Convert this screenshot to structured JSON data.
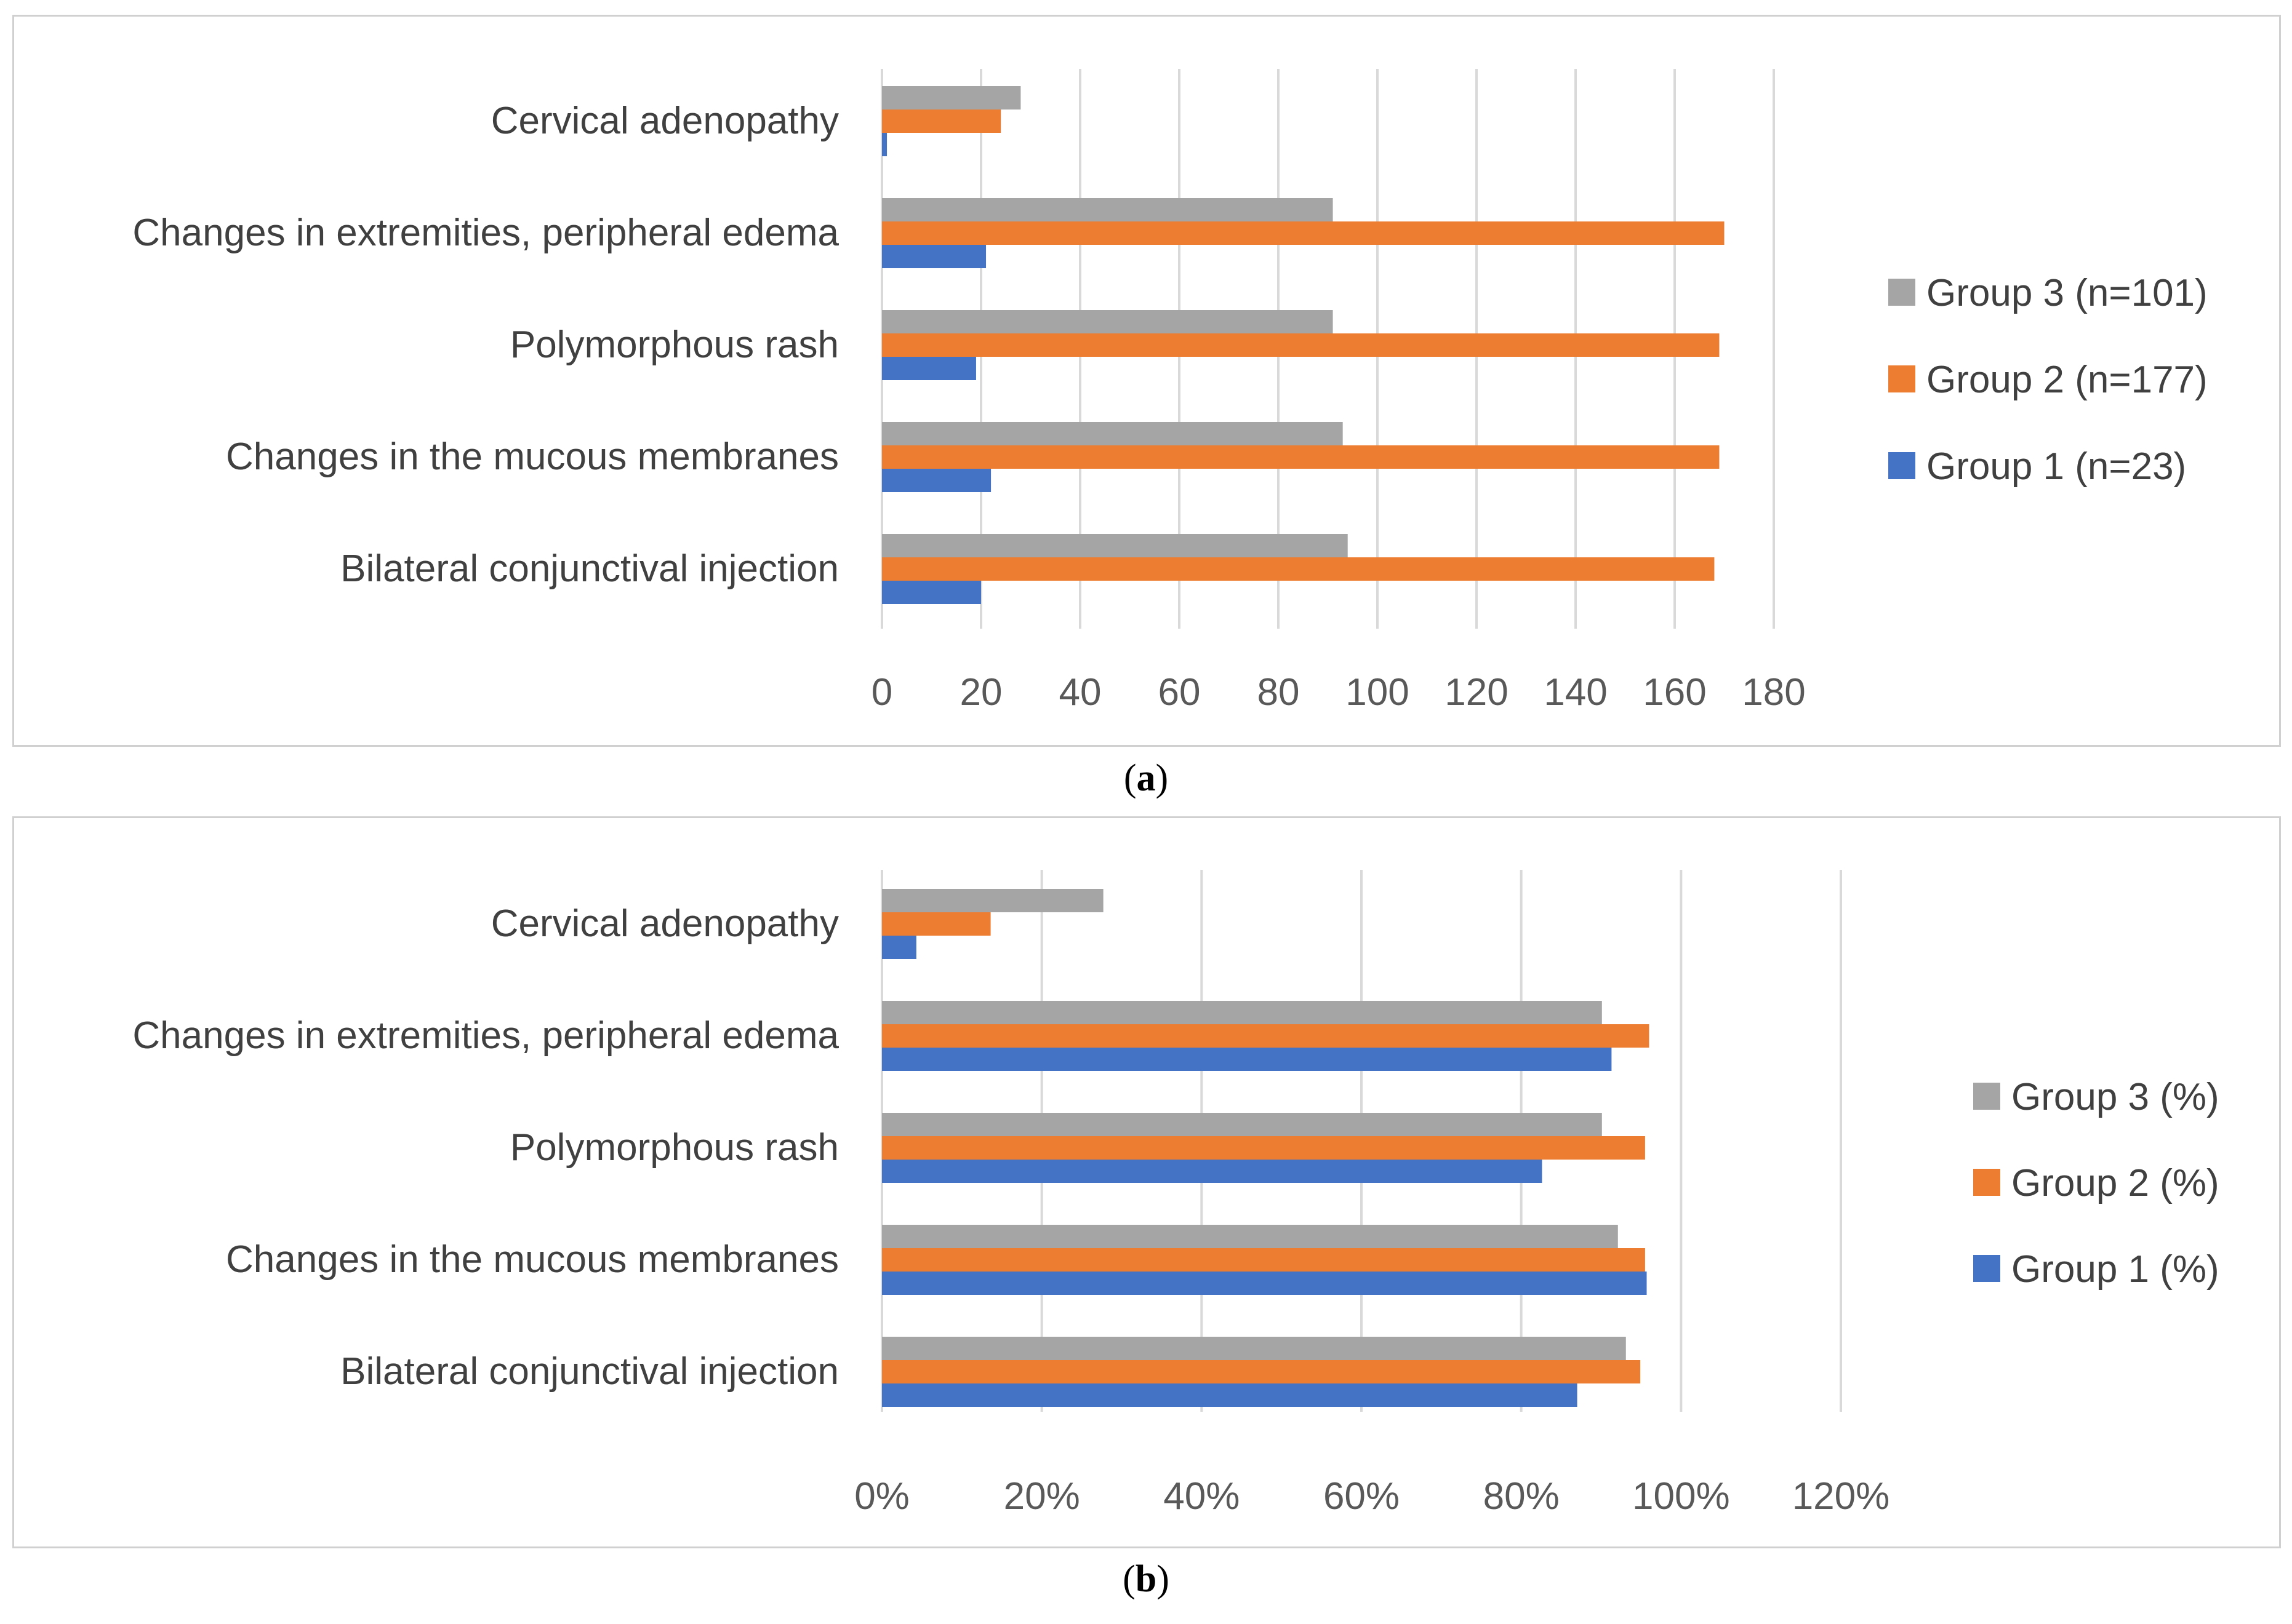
{
  "chart_data": [
    {
      "type": "bar",
      "orientation": "horizontal",
      "panel_label": "a",
      "categories": [
        "Bilateral conjunctival injection",
        "Changes in the mucous membranes",
        "Polymorphous rash",
        "Changes in extremities,  peripheral edema",
        "Cervical adenopathy"
      ],
      "series": [
        {
          "name": "Group 1 (n=23)",
          "color": "#4472C4",
          "values": [
            20,
            22,
            19,
            21,
            1
          ]
        },
        {
          "name": "Group 2 (n=177)",
          "color": "#ED7D31",
          "values": [
            168,
            169,
            169,
            170,
            24
          ]
        },
        {
          "name": "Group 3 (n=101)",
          "color": "#A5A5A5",
          "values": [
            94,
            93,
            91,
            91,
            28
          ]
        }
      ],
      "xlim": [
        0,
        180
      ],
      "ticks": [
        0,
        20,
        40,
        60,
        80,
        100,
        120,
        140,
        160,
        180
      ],
      "tick_labels": [
        "0",
        "20",
        "40",
        "60",
        "80",
        "100",
        "120",
        "140",
        "160",
        "180"
      ],
      "legend_position": "right",
      "grid": true,
      "title": "",
      "xlabel": "",
      "ylabel": ""
    },
    {
      "type": "bar",
      "orientation": "horizontal",
      "panel_label": "b",
      "categories": [
        "Bilateral conjunctival injection",
        "Changes in the mucous membranes",
        "Polymorphous rash",
        "Changes in extremities,  peripheral edema",
        "Cervical adenopathy"
      ],
      "series": [
        {
          "name": "Group 1 (%)",
          "color": "#4472C4",
          "values": [
            87,
            95.7,
            82.6,
            91.3,
            4.3
          ]
        },
        {
          "name": "Group 2 (%)",
          "color": "#ED7D31",
          "values": [
            94.9,
            95.5,
            95.5,
            96,
            13.6
          ]
        },
        {
          "name": "Group 3 (%)",
          "color": "#A5A5A5",
          "values": [
            93.1,
            92.1,
            90.1,
            90.1,
            27.7
          ]
        }
      ],
      "xlim": [
        0,
        120
      ],
      "ticks": [
        0,
        20,
        40,
        60,
        80,
        100,
        120
      ],
      "tick_labels": [
        "0%",
        "20%",
        "40%",
        "60%",
        "80%",
        "100%",
        "120%"
      ],
      "legend_position": "right",
      "grid": true,
      "title": "",
      "xlabel": "",
      "ylabel": ""
    }
  ],
  "captions": {
    "a": "a",
    "b": "b"
  }
}
